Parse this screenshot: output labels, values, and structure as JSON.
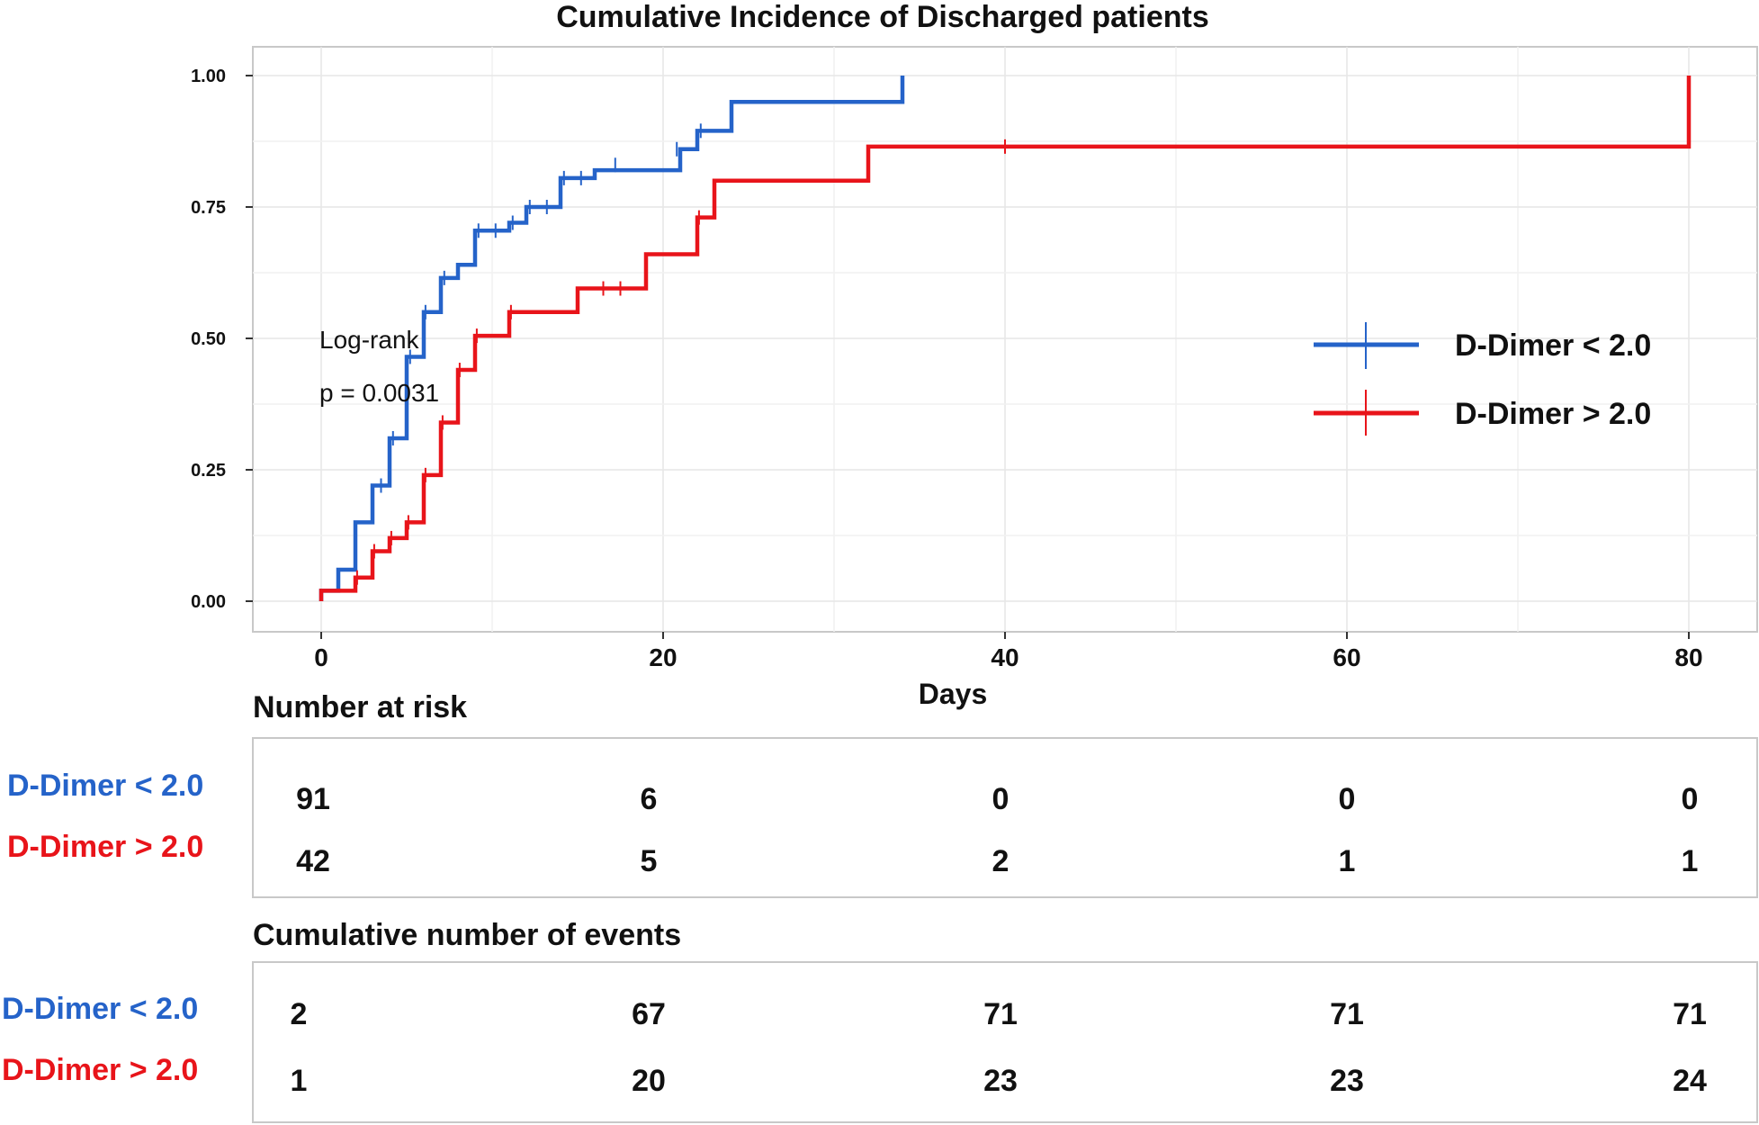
{
  "chart_data": {
    "type": "line",
    "subtype": "step (cumulative incidence)",
    "title": "Cumulative Incidence of Discharged patients",
    "xlabel": "Days",
    "ylabel": "",
    "xlim": [
      -5,
      82
    ],
    "ylim": [
      -0.05,
      1.05
    ],
    "xticks": [
      0,
      20,
      40,
      60,
      80
    ],
    "xtick_labels": [
      "0",
      "20",
      "40",
      "60",
      "80"
    ],
    "yticks": [
      0,
      0.25,
      0.5,
      0.75,
      1.0
    ],
    "ytick_labels": [
      "0.00",
      "0.25",
      "0.50",
      "0.75",
      "1.00"
    ],
    "grid": true,
    "legend_position": "right",
    "annotations": [
      "Log-rank",
      "p = 0.0031"
    ],
    "series": [
      {
        "name": "D-Dimer < 2.0",
        "color": "#2563c9",
        "steps": [
          [
            0,
            0.02
          ],
          [
            1,
            0.06
          ],
          [
            2,
            0.15
          ],
          [
            3,
            0.22
          ],
          [
            4,
            0.31
          ],
          [
            5,
            0.465
          ],
          [
            6,
            0.55
          ],
          [
            7,
            0.615
          ],
          [
            8,
            0.64
          ],
          [
            9,
            0.705
          ],
          [
            11,
            0.72
          ],
          [
            12,
            0.75
          ],
          [
            14,
            0.805
          ],
          [
            16,
            0.82
          ],
          [
            21,
            0.86
          ],
          [
            22,
            0.895
          ],
          [
            24,
            0.95
          ],
          [
            34,
            1.0
          ]
        ],
        "censor_marks": [
          [
            3.5,
            0.22
          ],
          [
            4.2,
            0.31
          ],
          [
            5.2,
            0.465
          ],
          [
            6.1,
            0.55
          ],
          [
            7.2,
            0.615
          ],
          [
            9.2,
            0.705
          ],
          [
            10.2,
            0.705
          ],
          [
            11.2,
            0.72
          ],
          [
            12.2,
            0.75
          ],
          [
            13.2,
            0.75
          ],
          [
            14.2,
            0.805
          ],
          [
            15.2,
            0.805
          ],
          [
            17.2,
            0.83
          ],
          [
            20.8,
            0.86
          ],
          [
            22.2,
            0.895
          ]
        ]
      },
      {
        "name": "D-Dimer > 2.0",
        "color": "#e8141a",
        "steps": [
          [
            0,
            0.02
          ],
          [
            2,
            0.045
          ],
          [
            3,
            0.095
          ],
          [
            4,
            0.12
          ],
          [
            5,
            0.15
          ],
          [
            6,
            0.24
          ],
          [
            7,
            0.34
          ],
          [
            8,
            0.44
          ],
          [
            9,
            0.505
          ],
          [
            11,
            0.55
          ],
          [
            15,
            0.595
          ],
          [
            19,
            0.66
          ],
          [
            22,
            0.73
          ],
          [
            23,
            0.8
          ],
          [
            32,
            0.865
          ],
          [
            80,
            1.0
          ]
        ],
        "censor_marks": [
          [
            2.1,
            0.045
          ],
          [
            3.1,
            0.095
          ],
          [
            4.1,
            0.12
          ],
          [
            5.1,
            0.15
          ],
          [
            6.1,
            0.24
          ],
          [
            7.1,
            0.34
          ],
          [
            8.1,
            0.44
          ],
          [
            9.1,
            0.505
          ],
          [
            11.1,
            0.55
          ],
          [
            16.5,
            0.595
          ],
          [
            17.5,
            0.595
          ],
          [
            22.1,
            0.73
          ],
          [
            40,
            0.865
          ]
        ]
      }
    ],
    "risk_table": {
      "title": "Number at risk",
      "time_points": [
        0,
        20,
        40,
        60,
        80
      ],
      "rows": [
        {
          "label": "D-Dimer < 2.0",
          "color": "#2563c9",
          "values": [
            "91",
            "6",
            "0",
            "0",
            "0"
          ]
        },
        {
          "label": "D-Dimer > 2.0",
          "color": "#e8141a",
          "values": [
            "42",
            "5",
            "2",
            "1",
            "1"
          ]
        }
      ]
    },
    "events_table": {
      "title": "Cumulative number of events",
      "time_points": [
        0,
        20,
        40,
        60,
        80
      ],
      "rows": [
        {
          "label": "D-Dimer < 2.0",
          "color": "#2563c9",
          "values": [
            "2",
            "67",
            "71",
            "71",
            "71"
          ]
        },
        {
          "label": "D-Dimer > 2.0",
          "color": "#e8141a",
          "values": [
            "1",
            "20",
            "23",
            "23",
            "24"
          ]
        }
      ]
    }
  }
}
